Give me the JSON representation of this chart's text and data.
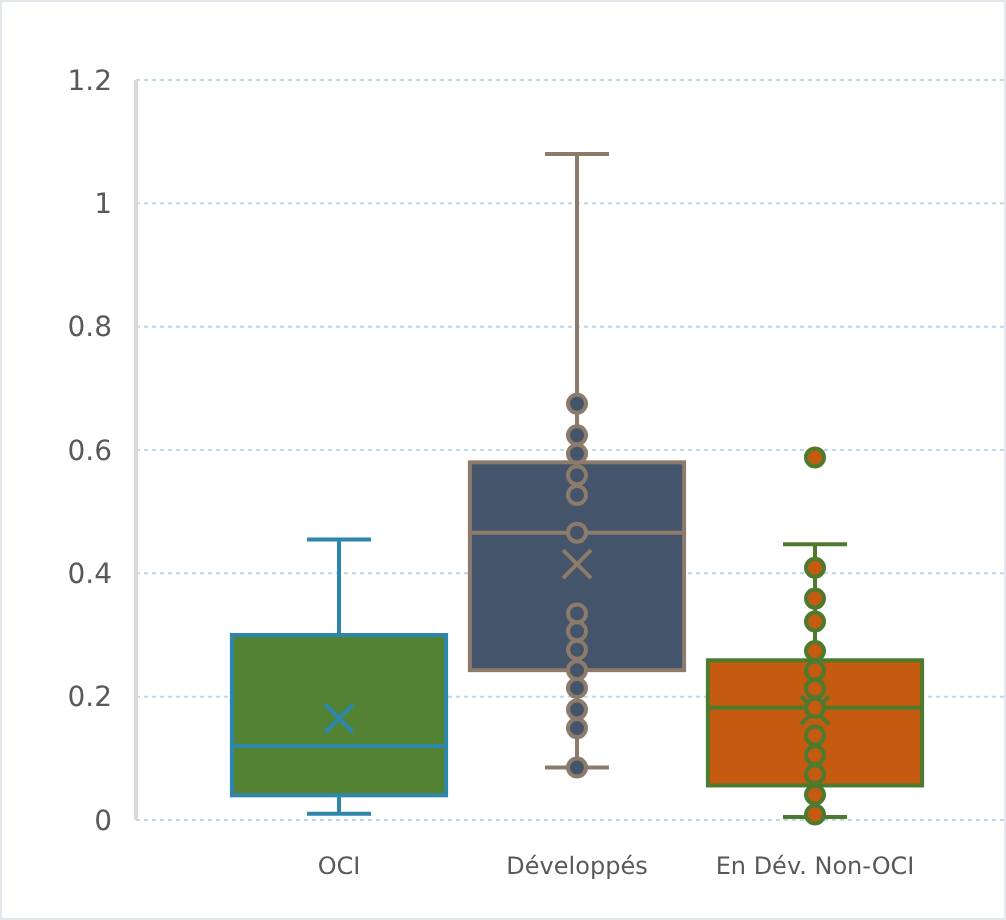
{
  "chart_data": {
    "type": "box",
    "categories": [
      "OCI",
      "Développés",
      "En Dév. Non-OCI"
    ],
    "colors": [
      "#548235",
      "#44546a",
      "#c55a11"
    ],
    "boxes": [
      {
        "low": 0.01,
        "q1": 0.04,
        "median": 0.12,
        "q3": 0.3,
        "high": 0.455,
        "mean": 0.165
      },
      {
        "low": 0.085,
        "q1": 0.243,
        "median": 0.466,
        "q3": 0.58,
        "high": 1.08,
        "mean": 0.415
      },
      {
        "low": 0.005,
        "q1": 0.056,
        "median": 0.182,
        "q3": 0.259,
        "high": 0.447,
        "mean": 0.178,
        "outliers": [
          0.588
        ]
      }
    ],
    "series": [
      {
        "type": "scatter",
        "color": "#44546a",
        "x": [
          "Développés",
          "Développés",
          "Développés",
          "Développés",
          "Développés",
          "Développés",
          "Développés",
          "Développés",
          "Développés",
          "Développés",
          "Développés",
          "Développés",
          "Développés",
          "Développés"
        ],
        "values": [
          0.675,
          0.624,
          0.594,
          0.559,
          0.527,
          0.466,
          0.335,
          0.306,
          0.276,
          0.243,
          0.214,
          0.179,
          0.149,
          0.085
        ]
      },
      {
        "type": "scatter",
        "color": "#c55a11",
        "x": [
          "En Dév. Non-OCI",
          "En Dév. Non-OCI",
          "En Dév. Non-OCI",
          "En Dév. Non-OCI",
          "En Dév. Non-OCI",
          "En Dév. Non-OCI",
          "En Dév. Non-OCI",
          "En Dév. Non-OCI",
          "En Dév. Non-OCI",
          "En Dév. Non-OCI",
          "En Dév. Non-OCI",
          "En Dév. Non-OCI"
        ],
        "values": [
          0.409,
          0.359,
          0.322,
          0.274,
          0.242,
          0.213,
          0.182,
          0.137,
          0.105,
          0.074,
          0.041,
          0.009
        ]
      }
    ],
    "ylim": [
      0,
      1.2
    ],
    "yticks": [
      0,
      0.2,
      0.4,
      0.6,
      0.8,
      1,
      1.2
    ],
    "grid": "y",
    "marker": "circle"
  }
}
